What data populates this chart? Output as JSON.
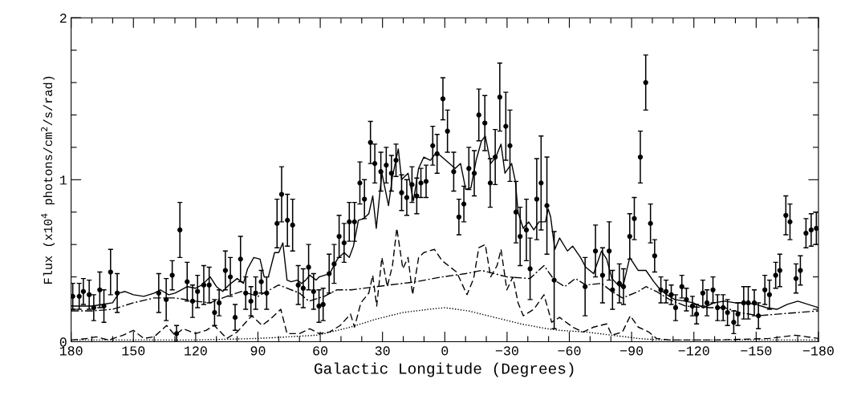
{
  "chart_data": {
    "type": "line",
    "xlabel": "Galactic Longitude (Degrees)",
    "ylabel": "Flux (x10$^{4}$ photons/cm$^{2}$/s/rad)",
    "xlim": [
      180,
      -180
    ],
    "xticks": [
      180,
      {
        "value": 170,
        "label": null
      },
      {
        "value": 160,
        "label": null
      },
      150,
      {
        "value": 140,
        "label": null
      },
      {
        "value": 130,
        "label": null
      },
      120,
      {
        "value": 110,
        "label": null
      },
      {
        "value": 100,
        "label": null
      },
      90,
      {
        "value": 80,
        "label": null
      },
      {
        "value": 70,
        "label": null
      },
      60,
      {
        "value": 50,
        "label": null
      },
      {
        "value": 40,
        "label": null
      },
      30,
      {
        "value": 20,
        "label": null
      },
      {
        "value": 10,
        "label": null
      },
      0,
      {
        "value": -10,
        "label": null
      },
      {
        "value": -20,
        "label": null
      },
      {
        "value": -30,
        "label": "−30"
      },
      {
        "value": -40,
        "label": null
      },
      {
        "value": -50,
        "label": null
      },
      {
        "value": -60,
        "label": "−60"
      },
      {
        "value": -70,
        "label": null
      },
      {
        "value": -80,
        "label": null
      },
      {
        "value": -90,
        "label": "−90"
      },
      {
        "value": -100,
        "label": null
      },
      {
        "value": -110,
        "label": null
      },
      {
        "value": -120,
        "label": "−120"
      },
      {
        "value": -130,
        "label": null
      },
      {
        "value": -140,
        "label": null
      },
      {
        "value": -150,
        "label": "−150"
      },
      {
        "value": -160,
        "label": null
      },
      {
        "value": -170,
        "label": null
      },
      {
        "value": -180,
        "label": "−180"
      }
    ],
    "ylim": [
      0,
      2
    ],
    "yticks": [
      0,
      {
        "value": 0.2,
        "label": null
      },
      {
        "value": 0.4,
        "label": null
      },
      {
        "value": 0.6,
        "label": null
      },
      {
        "value": 0.8,
        "label": null
      },
      1,
      {
        "value": 1.2,
        "label": null
      },
      {
        "value": 1.4,
        "label": null
      },
      {
        "value": 1.6,
        "label": null
      },
      {
        "value": 1.8,
        "label": null
      },
      2
    ],
    "grid": false,
    "series": [
      {
        "line_style": "solid",
        "color": "#000000",
        "x": [
          180,
          175,
          170,
          165,
          160,
          157,
          154,
          150,
          145,
          140,
          137,
          133,
          130,
          127,
          124,
          120,
          117,
          113,
          110,
          107,
          104,
          100,
          97,
          95,
          92,
          89,
          87,
          85,
          82,
          80,
          78,
          76,
          74,
          71,
          69,
          67,
          65,
          62,
          60.5,
          55.5,
          51.7,
          48.5,
          46,
          44,
          41.6,
          39.1,
          36.6,
          34.7,
          33,
          30.3,
          27.1,
          25.2,
          22.4,
          20.8,
          17.7,
          15.1,
          12.6,
          10.1,
          6.9,
          4,
          -5,
          -7.6,
          -10.1,
          -12.6,
          -15.1,
          -17.7,
          -19.5,
          -22.1,
          -24.6,
          -27.1,
          -29,
          -32.2,
          -34,
          -35.3,
          -37.8,
          -40.4,
          -42.9,
          -45.4,
          -48.5,
          -49.8,
          -51,
          -53,
          -55.3,
          -59.1,
          -61.6,
          -65.4,
          -67.9,
          -71.7,
          -75.5,
          -78,
          -80.5,
          -84.3,
          -86.2,
          -89.1,
          -93.2,
          -96.9,
          -100.7,
          -103.9,
          -107,
          -110.8,
          -115.9,
          -119.6,
          -124.7,
          -129.7,
          -134.8,
          -139.8,
          -144.9,
          -149.9,
          -154.9,
          -160,
          -165,
          -170.1,
          -180
        ],
        "values": [
          0.22,
          0.22,
          0.22,
          0.23,
          0.24,
          0.3,
          0.31,
          0.29,
          0.28,
          0.3,
          0.32,
          0.29,
          0.3,
          0.32,
          0.34,
          0.33,
          0.35,
          0.4,
          0.34,
          0.31,
          0.35,
          0.39,
          0.36,
          0.45,
          0.52,
          0.51,
          0.4,
          0.4,
          0.55,
          0.55,
          0.61,
          0.38,
          0.37,
          0.38,
          0.36,
          0.38,
          0.41,
          0.38,
          0.4,
          0.42,
          0.51,
          0.55,
          0.52,
          0.59,
          0.75,
          0.76,
          0.79,
          0.9,
          0.7,
          1.04,
          0.84,
          1.02,
          1.19,
          1.0,
          1.04,
          0.87,
          1.07,
          1.14,
          1.12,
          1.17,
          1.07,
          1.1,
          0.94,
          0.95,
          1.12,
          1.24,
          1.27,
          1.1,
          1.14,
          1.22,
          1.04,
          1.1,
          0.99,
          0.8,
          0.7,
          0.74,
          0.69,
          0.74,
          0.74,
          0.82,
          0.77,
          0.57,
          0.64,
          0.56,
          0.59,
          0.52,
          0.46,
          0.42,
          0.56,
          0.51,
          0.39,
          0.34,
          0.36,
          0.52,
          0.44,
          0.44,
          0.37,
          0.32,
          0.29,
          0.26,
          0.25,
          0.24,
          0.21,
          0.24,
          0.25,
          0.24,
          0.24,
          0.23,
          0.21,
          0.2,
          0.23,
          0.25,
          0.21
        ]
      },
      {
        "line_style": "dashdot",
        "color": "#000000",
        "x": [
          180,
          170,
          160,
          150,
          140,
          130,
          120,
          113,
          105,
          98,
          90,
          80,
          70,
          65.5,
          58,
          52,
          45,
          32.8,
          26.5,
          13.9,
          1.3,
          -10,
          -17.7,
          -30,
          -41,
          -47.8,
          -52.8,
          -57.8,
          -62.9,
          -67.9,
          -75.5,
          -80.5,
          -85.6,
          -93.2,
          -96.9,
          -102,
          -108.3,
          -115.9,
          -124.7,
          -134.8,
          -142.3,
          -151.2,
          -160,
          -170.1,
          -180
        ],
        "values": [
          0.19,
          0.19,
          0.2,
          0.24,
          0.27,
          0.27,
          0.25,
          0.24,
          0.28,
          0.31,
          0.28,
          0.35,
          0.3,
          0.25,
          0.28,
          0.32,
          0.32,
          0.34,
          0.35,
          0.37,
          0.4,
          0.42,
          0.44,
          0.4,
          0.39,
          0.47,
          0.38,
          0.34,
          0.39,
          0.35,
          0.36,
          0.31,
          0.27,
          0.31,
          0.34,
          0.31,
          0.26,
          0.22,
          0.21,
          0.21,
          0.18,
          0.16,
          0.17,
          0.18,
          0.19
        ]
      },
      {
        "line_style": "dashed",
        "color": "#000000",
        "x": [
          180,
          172,
          168,
          162,
          155,
          150,
          145,
          140,
          134,
          130,
          126,
          120,
          115,
          111,
          105,
          100,
          93,
          88,
          84,
          79,
          76,
          70,
          65,
          60.5,
          55.5,
          50.4,
          45.4,
          43.5,
          40.4,
          36.6,
          34.7,
          32.8,
          30.3,
          27.7,
          25.2,
          23.1,
          20.2,
          17.7,
          15.5,
          12.6,
          10.1,
          5,
          1.3,
          -5.7,
          -10.7,
          -13.9,
          -16.4,
          -19.5,
          -22.1,
          -25.2,
          -27.1,
          -29.9,
          -32.8,
          -35.3,
          -37.8,
          -42.9,
          -47.8,
          -51.5,
          -55.3,
          -61.6,
          -66.7,
          -71.7,
          -78,
          -80.5,
          -85.6,
          -89.4,
          -93.2,
          -98.2,
          -102,
          -108.3,
          -131,
          -156.2,
          -168.8,
          -180
        ],
        "values": [
          0.01,
          0.02,
          0.03,
          0.01,
          0.04,
          0.07,
          0.02,
          0.03,
          0.1,
          0.04,
          0.08,
          0.05,
          0.07,
          0.1,
          0.02,
          0.06,
          0.16,
          0.1,
          0.14,
          0.2,
          0.05,
          0.05,
          0.08,
          0.05,
          0.06,
          0.1,
          0.17,
          0.09,
          0.24,
          0.3,
          0.41,
          0.22,
          0.52,
          0.34,
          0.47,
          0.7,
          0.45,
          0.52,
          0.29,
          0.52,
          0.55,
          0.57,
          0.5,
          0.43,
          0.29,
          0.39,
          0.58,
          0.6,
          0.4,
          0.47,
          0.57,
          0.32,
          0.4,
          0.24,
          0.16,
          0.2,
          0.29,
          0.12,
          0.15,
          0.09,
          0.06,
          0.09,
          0.11,
          0.04,
          0.06,
          0.16,
          0.09,
          0.06,
          0.02,
          0.01,
          0.01,
          0.02,
          0.04,
          0.02
        ]
      },
      {
        "line_style": "dotted",
        "color": "#000000",
        "x": [
          180,
          150,
          120,
          90,
          75,
          62,
          58,
          45.4,
          32.8,
          20.2,
          7.6,
          0,
          -11.3,
          -24,
          -36.6,
          -49.2,
          -55.3,
          -67.9,
          -80.5,
          -93.2,
          -103.2,
          -120,
          -180
        ],
        "values": [
          0.01,
          0.01,
          0.01,
          0.02,
          0.03,
          0.04,
          0.05,
          0.09,
          0.14,
          0.18,
          0.2,
          0.21,
          0.19,
          0.15,
          0.11,
          0.08,
          0.07,
          0.06,
          0.04,
          0.02,
          0.01,
          0.01,
          0.01
        ]
      },
      {
        "type": "scatter",
        "marker": "circle",
        "color": "#000000",
        "x": [
          179.2,
          176.1,
          174.1,
          171.3,
          169.1,
          166.2,
          164.2,
          161.0,
          157.8,
          137.8,
          134.2,
          131.3,
          129.2,
          127.6,
          124.1,
          121.5,
          119.1,
          116.1,
          113.5,
          110.9,
          108.7,
          105.7,
          103.3,
          101.0,
          98.4,
          95.9,
          93.4,
          91.1,
          88.4,
          85.8,
          80.8,
          78.6,
          75.8,
          73.3,
          70.6,
          68.2,
          65.6,
          63.2,
          60.6,
          58.6,
          55.7,
          53.3,
          50.9,
          48.5,
          46.0,
          43.5,
          40.9,
          38.7,
          35.8,
          33.7,
          30.8,
          28.2,
          25.7,
          23.5,
          20.8,
          18.3,
          15.8,
          13.5,
          11.5,
          9.0,
          5.8,
          3.7,
          0.9,
          -1.3,
          -4.3,
          -6.8,
          -9.2,
          -11.6,
          -14.2,
          -16.4,
          -19.3,
          -21.9,
          -24.3,
          -26.5,
          -29.4,
          -31.4,
          -34.3,
          -36.3,
          -39.3,
          -41.1,
          -44.3,
          -46.4,
          -49.2,
          -52.7,
          -67.6,
          -72.6,
          -76.0,
          -79.2,
          -80.8,
          -84.1,
          -86.1,
          -89.1,
          -91.3,
          -94.2,
          -96.8,
          -99.1,
          -101.1,
          -104.1,
          -106.6,
          -109.1,
          -111.2,
          -114.2,
          -116.4,
          -119.3,
          -121.3,
          -124.3,
          -126.3,
          -129.2,
          -131.4,
          -134.1,
          -136.2,
          -139.2,
          -141.2,
          -144.0,
          -146.2,
          -149.1,
          -151.1,
          -154.2,
          -156.4,
          -159.4,
          -161.4,
          -164.3,
          -166.3,
          -169.2,
          -171.3,
          -174.0,
          -176.5,
          -179.0
        ],
        "values": [
          0.28,
          0.28,
          0.31,
          0.29,
          0.21,
          0.32,
          0.22,
          0.43,
          0.3,
          0.3,
          0.26,
          0.41,
          0.05,
          0.69,
          0.37,
          0.25,
          0.31,
          0.35,
          0.35,
          0.18,
          0.24,
          0.44,
          0.4,
          0.15,
          0.51,
          0.3,
          0.25,
          0.3,
          0.37,
          0.3,
          0.73,
          0.91,
          0.75,
          0.72,
          0.35,
          0.33,
          0.46,
          0.31,
          0.22,
          0.23,
          0.42,
          0.48,
          0.65,
          0.61,
          0.74,
          0.74,
          0.98,
          0.88,
          1.23,
          1.1,
          1.05,
          1.09,
          1.04,
          1.12,
          0.92,
          0.89,
          0.97,
          0.9,
          0.98,
          0.99,
          1.21,
          1.16,
          1.5,
          1.3,
          1.05,
          0.77,
          0.85,
          1.07,
          1.04,
          1.4,
          1.35,
          0.98,
          1.14,
          1.51,
          1.33,
          1.21,
          0.8,
          0.65,
          0.69,
          0.45,
          0.88,
          0.98,
          0.84,
          0.38,
          0.34,
          0.56,
          0.41,
          0.56,
          0.32,
          0.36,
          0.34,
          0.65,
          0.76,
          1.14,
          1.6,
          0.73,
          0.53,
          0.32,
          0.31,
          0.29,
          0.21,
          0.34,
          0.26,
          0.22,
          0.17,
          0.3,
          0.24,
          0.32,
          0.21,
          0.21,
          0.18,
          0.12,
          0.17,
          0.24,
          0.24,
          0.24,
          0.16,
          0.32,
          0.29,
          0.41,
          0.44,
          0.78,
          0.74,
          0.39,
          0.44,
          0.67,
          0.69,
          0.7
        ],
        "errors": [
          0.08,
          0.08,
          0.08,
          0.09,
          0.08,
          0.11,
          0.1,
          0.14,
          0.12,
          0.12,
          0.13,
          0.09,
          0.05,
          0.17,
          0.12,
          0.1,
          0.1,
          0.12,
          0.11,
          0.08,
          0.08,
          0.12,
          0.12,
          0.08,
          0.14,
          0.1,
          0.09,
          0.1,
          0.07,
          0.1,
          0.15,
          0.17,
          0.16,
          0.16,
          0.12,
          0.12,
          0.14,
          0.11,
          0.1,
          0.1,
          0.12,
          0.12,
          0.13,
          0.12,
          0.12,
          0.12,
          0.13,
          0.12,
          0.13,
          0.12,
          0.12,
          0.11,
          0.11,
          0.1,
          0.11,
          0.11,
          0.11,
          0.11,
          0.09,
          0.1,
          0.12,
          0.12,
          0.13,
          0.13,
          0.12,
          0.11,
          0.11,
          0.13,
          0.14,
          0.16,
          0.17,
          0.15,
          0.17,
          0.21,
          0.21,
          0.22,
          0.19,
          0.18,
          0.19,
          0.19,
          0.25,
          0.29,
          0.3,
          0.3,
          0.18,
          0.16,
          0.17,
          0.18,
          0.12,
          0.12,
          0.11,
          0.14,
          0.13,
          0.16,
          0.17,
          0.12,
          0.1,
          0.08,
          0.07,
          0.06,
          0.08,
          0.07,
          0.07,
          0.06,
          0.06,
          0.08,
          0.08,
          0.08,
          0.08,
          0.08,
          0.08,
          0.07,
          0.07,
          0.1,
          0.1,
          0.08,
          0.08,
          0.09,
          0.09,
          0.08,
          0.1,
          0.12,
          0.11,
          0.09,
          0.09,
          0.09,
          0.1,
          0.1
        ]
      }
    ]
  }
}
